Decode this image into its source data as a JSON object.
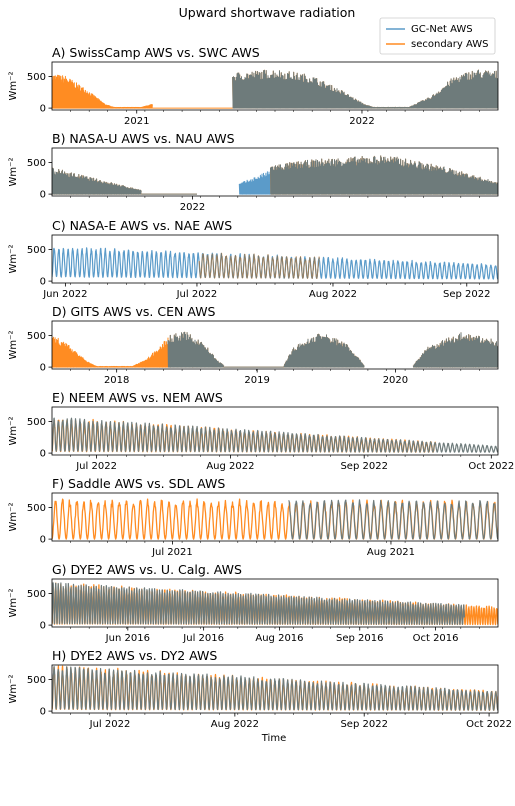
{
  "figure": {
    "title": "Upward shortwave radiation",
    "xlabel": "Time",
    "legend": {
      "placement": "top-right",
      "entries": [
        {
          "label": "GC-Net AWS",
          "color": "#5b9bc9"
        },
        {
          "label": "secondary AWS",
          "color": "#ff8c22"
        }
      ]
    },
    "overlap_color": "#6e7b7b"
  },
  "chart_data": [
    {
      "type": "line",
      "title": "A) SwissCamp AWS vs. SWC AWS",
      "ylabel": "Wm⁻²",
      "yticks": [
        0,
        500
      ],
      "ylim": [
        -30,
        730
      ],
      "xticks": [
        {
          "label": "2021",
          "t": 0.19
        },
        {
          "label": "2022",
          "t": 0.695
        }
      ],
      "segments": [
        {
          "t0": 0.0,
          "t1": 0.225,
          "peak": 570,
          "season": [
            [
              0.0,
              0.95
            ],
            [
              0.03,
              0.9
            ],
            [
              0.08,
              0.5
            ],
            [
              0.12,
              0.1
            ],
            [
              0.14,
              0.02
            ],
            [
              0.2,
              0.02
            ],
            [
              0.25,
              0.2
            ],
            [
              0.3,
              0.55
            ],
            [
              0.36,
              0.85
            ],
            [
              0.4,
              1.0
            ]
          ],
          "kind": "secondary",
          "cycles": 180
        },
        {
          "t0": 0.225,
          "t1": 0.405,
          "peak": 640,
          "season": [
            [
              0.0,
              0.0
            ],
            [
              0.5,
              0.0
            ]
          ],
          "kind": "secondary",
          "cycles": 160
        },
        {
          "t0": 0.405,
          "t1": 1.0,
          "peak": 620,
          "season": [
            [
              0.4,
              0.9
            ],
            [
              0.5,
              1.0
            ],
            [
              0.58,
              0.85
            ],
            [
              0.65,
              0.45
            ],
            [
              0.7,
              0.1
            ],
            [
              0.72,
              0.02
            ],
            [
              0.8,
              0.02
            ],
            [
              0.85,
              0.3
            ],
            [
              0.9,
              0.8
            ],
            [
              0.95,
              1.0
            ],
            [
              1.0,
              0.95
            ]
          ],
          "kind": "overlap",
          "cycles": 300
        }
      ]
    },
    {
      "type": "line",
      "title": "B) NASA-U AWS vs. NAU AWS",
      "ylabel": "Wm⁻²",
      "yticks": [
        0,
        500
      ],
      "ylim": [
        -30,
        730
      ],
      "xticks": [
        {
          "label": "2022",
          "t": 0.315
        }
      ],
      "segments": [
        {
          "t0": 0.0,
          "t1": 0.2,
          "peak": 420,
          "season": [
            [
              0.0,
              1.0
            ],
            [
              0.2,
              0.15
            ]
          ],
          "kind": "overlap",
          "cycles": 120
        },
        {
          "t0": 0.2,
          "t1": 0.325,
          "peak": 0,
          "season": [
            [
              0.0,
              0.0
            ],
            [
              1.0,
              0.0
            ]
          ],
          "kind": "overlap",
          "cycles": 1
        },
        {
          "t0": 0.42,
          "t1": 0.49,
          "peak": 420,
          "season": [
            [
              0.42,
              0.4
            ],
            [
              0.49,
              0.9
            ]
          ],
          "kind": "primary",
          "cycles": 40
        },
        {
          "t0": 0.49,
          "t1": 1.0,
          "peak": 620,
          "season": [
            [
              0.49,
              0.75
            ],
            [
              0.6,
              0.9
            ],
            [
              0.75,
              1.0
            ],
            [
              0.88,
              0.7
            ],
            [
              1.0,
              0.3
            ]
          ],
          "kind": "overlap",
          "cycles": 320
        }
      ]
    },
    {
      "type": "line",
      "title": "C) NASA-E AWS vs. NAE AWS",
      "ylabel": "Wm⁻²",
      "yticks": [
        0,
        500
      ],
      "ylim": [
        -30,
        730
      ],
      "xticks": [
        {
          "label": "Jun 2022",
          "t": 0.03
        },
        {
          "label": "Jul 2022",
          "t": 0.325
        },
        {
          "label": "Aug 2022",
          "t": 0.63
        },
        {
          "label": "Sep 2022",
          "t": 0.93
        }
      ],
      "daily": {
        "days": 96,
        "max": 560,
        "min": 70,
        "decay": 0.45,
        "primary_range": [
          0.0,
          1.0
        ],
        "secondary_range": [
          0.33,
          0.6
        ]
      }
    },
    {
      "type": "line",
      "title": "D) GITS AWS vs. CEN AWS",
      "ylabel": "Wm⁻²",
      "yticks": [
        0,
        500
      ],
      "ylim": [
        -30,
        730
      ],
      "xticks": [
        {
          "label": "2018",
          "t": 0.145
        },
        {
          "label": "2019",
          "t": 0.46
        },
        {
          "label": "2020",
          "t": 0.77
        }
      ],
      "segments": [
        {
          "t0": 0.0,
          "t1": 0.26,
          "peak": 560,
          "season": [
            [
              0.0,
              0.95
            ],
            [
              0.04,
              0.6
            ],
            [
              0.08,
              0.15
            ],
            [
              0.1,
              0.02
            ],
            [
              0.18,
              0.02
            ],
            [
              0.21,
              0.2
            ],
            [
              0.25,
              0.7
            ],
            [
              0.26,
              0.85
            ]
          ],
          "kind": "secondary",
          "cycles": 150
        },
        {
          "t0": 0.26,
          "t1": 0.385,
          "peak": 560,
          "season": [
            [
              0.26,
              0.9
            ],
            [
              0.3,
              1.0
            ],
            [
              0.34,
              0.7
            ],
            [
              0.37,
              0.2
            ],
            [
              0.385,
              0.05
            ]
          ],
          "kind": "overlap",
          "cycles": 70
        },
        {
          "t0": 0.385,
          "t1": 0.52,
          "peak": 0,
          "season": [
            [
              0.0,
              0.0
            ],
            [
              1.0,
              0.0
            ]
          ],
          "kind": "overlap",
          "cycles": 1
        },
        {
          "t0": 0.52,
          "t1": 0.7,
          "peak": 560,
          "season": [
            [
              0.52,
              0.05
            ],
            [
              0.54,
              0.55
            ],
            [
              0.6,
              1.0
            ],
            [
              0.66,
              0.7
            ],
            [
              0.7,
              0.05
            ]
          ],
          "kind": "overlap",
          "cycles": 100
        },
        {
          "t0": 0.81,
          "t1": 1.0,
          "peak": 560,
          "season": [
            [
              0.81,
              0.05
            ],
            [
              0.84,
              0.55
            ],
            [
              0.92,
              1.0
            ],
            [
              1.0,
              0.75
            ]
          ],
          "kind": "overlap",
          "cycles": 110
        }
      ]
    },
    {
      "type": "line",
      "title": "E) NEEM AWS vs. NEM AWS",
      "ylabel": "Wm⁻²",
      "yticks": [
        0,
        500
      ],
      "ylim": [
        -30,
        730
      ],
      "xticks": [
        {
          "label": "Jul 2022",
          "t": 0.1
        },
        {
          "label": "Aug 2022",
          "t": 0.4
        },
        {
          "label": "Sep 2022",
          "t": 0.7
        },
        {
          "label": "Oct 2022",
          "t": 0.985
        }
      ],
      "daily": {
        "days": 103,
        "max": 580,
        "min": 30,
        "decay": 0.78,
        "primary_range": [
          0.0,
          1.0
        ],
        "secondary_range": [
          0.0,
          0.86
        ]
      }
    },
    {
      "type": "line",
      "title": "F) Saddle AWS vs. SDL AWS",
      "ylabel": "Wm⁻²",
      "yticks": [
        0,
        500
      ],
      "ylim": [
        -30,
        730
      ],
      "xticks": [
        {
          "label": "Jul 2021",
          "t": 0.27
        },
        {
          "label": "Aug 2021",
          "t": 0.76
        }
      ],
      "daily": {
        "days": 63,
        "max": 650,
        "min": 0,
        "decay": 0.05,
        "primary_range": [
          0.53,
          1.0
        ],
        "secondary_range": [
          0.0,
          1.0
        ]
      }
    },
    {
      "type": "line",
      "title": "G) DYE2 AWS vs. U. Calg. AWS",
      "ylabel": "Wm⁻²",
      "yticks": [
        0,
        500
      ],
      "ylim": [
        -30,
        730
      ],
      "xticks": [
        {
          "label": "Jun 2016",
          "t": 0.17
        },
        {
          "label": "Jul 2016",
          "t": 0.34
        },
        {
          "label": "Aug 2016",
          "t": 0.51
        },
        {
          "label": "Sep 2016",
          "t": 0.69
        },
        {
          "label": "Oct 2016",
          "t": 0.86
        }
      ],
      "daily": {
        "days": 176,
        "max": 680,
        "min": 20,
        "decay": 0.55,
        "primary_range": [
          0.0,
          0.925
        ],
        "secondary_range": [
          0.0,
          1.0
        ]
      }
    },
    {
      "type": "line",
      "title": "H) DYE2 AWS vs. DY2 AWS",
      "ylabel": "Wm⁻²",
      "yticks": [
        0,
        500
      ],
      "ylim": [
        -30,
        730
      ],
      "xticks": [
        {
          "label": "Jul 2022",
          "t": 0.13
        },
        {
          "label": "Aug 2022",
          "t": 0.41
        },
        {
          "label": "Sep 2022",
          "t": 0.7
        },
        {
          "label": "Oct 2022",
          "t": 0.98
        }
      ],
      "daily": {
        "days": 105,
        "max": 740,
        "min": 30,
        "decay": 0.55,
        "primary_range": [
          0.0,
          1.0
        ],
        "secondary_range": [
          0.0,
          1.0
        ]
      }
    }
  ]
}
